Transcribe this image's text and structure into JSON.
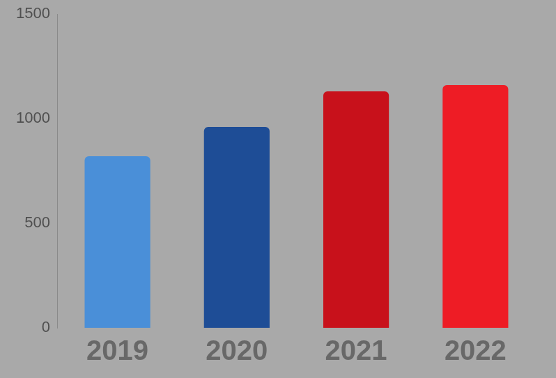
{
  "chart_data": {
    "type": "bar",
    "categories": [
      "2019",
      "2020",
      "2021",
      "2022"
    ],
    "values": [
      820,
      960,
      1130,
      1160
    ],
    "colors": [
      "#4a8fd8",
      "#1e4d96",
      "#c8111b",
      "#ee1c25"
    ],
    "ylim": [
      0,
      1500
    ],
    "yticks": [
      0,
      500,
      1000,
      1500
    ],
    "grid": false
  }
}
